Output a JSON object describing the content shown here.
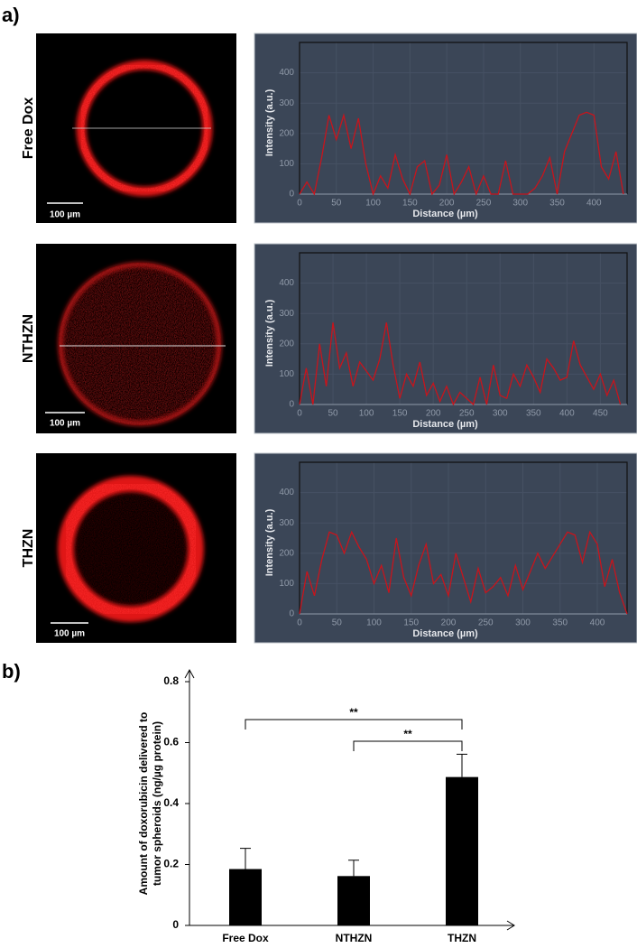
{
  "panel_labels": [
    "a)",
    "b)"
  ],
  "images": [
    {
      "label": "Free Dox",
      "scale_bar": "100 µm"
    },
    {
      "label": "NTHZN",
      "scale_bar": "100 µm"
    },
    {
      "label": "THZN",
      "scale_bar": "100 µm"
    }
  ],
  "chart_data": [
    {
      "type": "line",
      "xlabel": "Distance (µm)",
      "ylabel": "Intensity (a.u.)",
      "color": "#c8141c",
      "x": [
        0,
        10,
        20,
        30,
        40,
        50,
        60,
        70,
        80,
        90,
        100,
        110,
        120,
        130,
        140,
        150,
        160,
        170,
        180,
        190,
        200,
        210,
        220,
        230,
        240,
        250,
        260,
        270,
        280,
        290,
        300,
        310,
        320,
        330,
        340,
        350,
        360,
        370,
        380,
        390,
        400,
        410,
        420,
        430,
        440
      ],
      "values": [
        0,
        40,
        0,
        120,
        260,
        180,
        260,
        150,
        250,
        100,
        0,
        60,
        20,
        130,
        50,
        0,
        90,
        110,
        0,
        30,
        130,
        0,
        40,
        90,
        0,
        60,
        0,
        0,
        110,
        0,
        0,
        0,
        20,
        60,
        120,
        0,
        140,
        200,
        260,
        270,
        260,
        90,
        50,
        140,
        0
      ],
      "xlim": [
        0,
        445
      ],
      "xticks": [
        0,
        50,
        100,
        150,
        200,
        250,
        300,
        350,
        400
      ],
      "ylim": [
        0,
        500
      ],
      "yticks": [
        0,
        100,
        200,
        300,
        400
      ]
    },
    {
      "type": "line",
      "xlabel": "Distance (µm)",
      "ylabel": "Intensity (a.u.)",
      "color": "#c8141c",
      "x": [
        0,
        10,
        20,
        30,
        40,
        50,
        60,
        70,
        80,
        90,
        100,
        110,
        120,
        130,
        140,
        150,
        160,
        170,
        180,
        190,
        200,
        210,
        220,
        230,
        240,
        250,
        260,
        270,
        280,
        290,
        300,
        310,
        320,
        330,
        340,
        350,
        360,
        370,
        380,
        390,
        400,
        410,
        420,
        430,
        440,
        450,
        460,
        470,
        480
      ],
      "values": [
        0,
        120,
        0,
        200,
        60,
        270,
        120,
        170,
        60,
        140,
        110,
        80,
        150,
        270,
        130,
        20,
        100,
        60,
        140,
        30,
        70,
        10,
        60,
        0,
        40,
        20,
        0,
        90,
        0,
        130,
        30,
        20,
        100,
        60,
        130,
        90,
        40,
        150,
        120,
        80,
        90,
        210,
        130,
        90,
        50,
        100,
        30,
        80,
        0
      ],
      "xlim": [
        0,
        490
      ],
      "xticks": [
        0,
        50,
        100,
        150,
        200,
        250,
        300,
        350,
        400,
        450
      ],
      "ylim": [
        0,
        500
      ],
      "yticks": [
        0,
        100,
        200,
        300,
        400
      ]
    },
    {
      "type": "line",
      "xlabel": "Distance (µm)",
      "ylabel": "Intensity (a.u.)",
      "color": "#c8141c",
      "x": [
        0,
        10,
        20,
        30,
        40,
        50,
        60,
        70,
        80,
        90,
        100,
        110,
        120,
        130,
        140,
        150,
        160,
        170,
        180,
        190,
        200,
        210,
        220,
        230,
        240,
        250,
        260,
        270,
        280,
        290,
        300,
        310,
        320,
        330,
        340,
        350,
        360,
        370,
        380,
        390,
        400,
        410,
        420,
        430,
        440
      ],
      "values": [
        0,
        140,
        60,
        180,
        270,
        260,
        200,
        270,
        220,
        180,
        100,
        160,
        70,
        250,
        120,
        60,
        160,
        230,
        100,
        130,
        60,
        200,
        120,
        40,
        150,
        70,
        90,
        120,
        60,
        160,
        80,
        140,
        200,
        150,
        190,
        230,
        270,
        260,
        170,
        270,
        230,
        90,
        180,
        70,
        0
      ],
      "xlim": [
        0,
        440
      ],
      "xticks": [
        0,
        50,
        100,
        150,
        200,
        250,
        300,
        350,
        400
      ],
      "ylim": [
        0,
        500
      ],
      "yticks": [
        0,
        100,
        200,
        300,
        400
      ]
    },
    {
      "type": "bar",
      "categories": [
        "Free Dox",
        "NTHZN",
        "THZN"
      ],
      "values": [
        0.185,
        0.162,
        0.487
      ],
      "errors": [
        0.068,
        0.052,
        0.075
      ],
      "color": "#000000",
      "ylabel": [
        "Amount of doxorubicin delivered to",
        "tumor spheroids (ng/µg protein)"
      ],
      "ylim": [
        0,
        0.8
      ],
      "yticks": [
        0,
        0.2,
        0.4,
        0.6,
        0.8
      ],
      "annotations": [
        {
          "label": "**",
          "between": [
            0,
            2
          ]
        },
        {
          "label": "**",
          "between": [
            1,
            2
          ]
        }
      ]
    }
  ]
}
